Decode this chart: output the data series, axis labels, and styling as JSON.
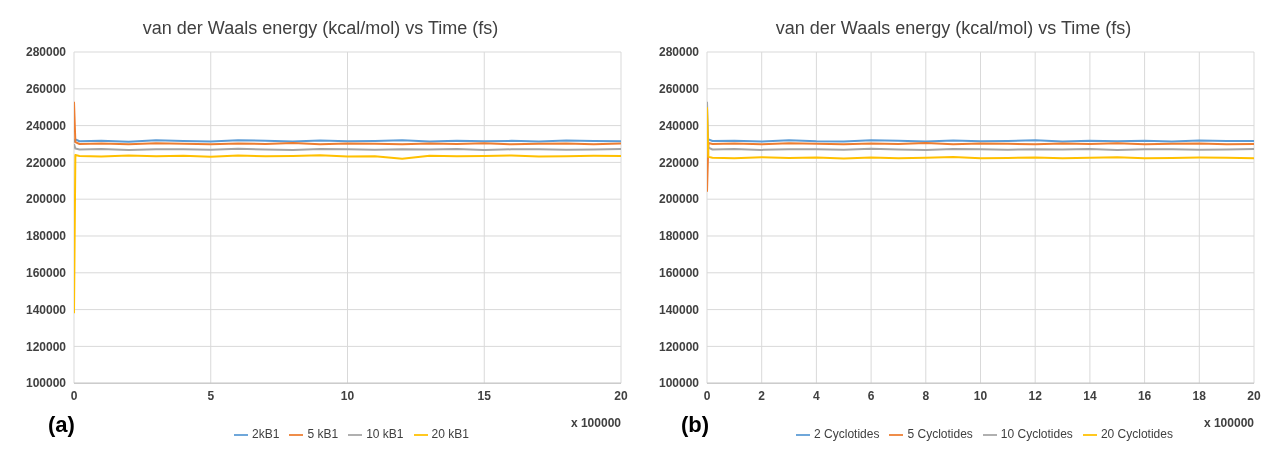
{
  "chart_data": [
    {
      "type": "line",
      "title": "van der Waals energy (kcal/mol) vs Time (fs)",
      "xlabel": "x 100000",
      "annotations": [
        "(a)"
      ],
      "x": [
        0,
        0.05,
        0.2,
        1,
        2,
        3,
        4,
        5,
        6,
        7,
        8,
        9,
        10,
        11,
        12,
        13,
        14,
        15,
        16,
        17,
        18,
        19,
        20
      ],
      "series": [
        {
          "name": "2kB1",
          "color": "#5b9bd5",
          "values": [
            231000,
            232500,
            231500,
            231800,
            231200,
            232000,
            231600,
            231400,
            232100,
            231700,
            231300,
            231900,
            231500,
            231600,
            232000,
            231400,
            231800,
            231500,
            231700,
            231300,
            231900,
            231600,
            231500
          ]
        },
        {
          "name": "5 kB1",
          "color": "#ed7d31",
          "values": [
            253000,
            231000,
            230000,
            230300,
            229800,
            230400,
            230100,
            229900,
            230200,
            230000,
            230500,
            229800,
            230300,
            230100,
            229900,
            230200,
            230000,
            230400,
            229800,
            230100,
            230300,
            229900,
            230200
          ]
        },
        {
          "name": "10 kB1",
          "color": "#a5a5a5",
          "values": [
            230000,
            227500,
            227000,
            227300,
            226800,
            227200,
            227100,
            226900,
            227400,
            227000,
            226800,
            227300,
            227100,
            226900,
            227200,
            227000,
            227300,
            226800,
            227100,
            227200,
            226900,
            227000,
            227300
          ]
        },
        {
          "name": "20 kB1",
          "color": "#ffc000",
          "values": [
            138000,
            224000,
            223500,
            223200,
            223800,
            223400,
            223600,
            223100,
            223700,
            223300,
            223500,
            223900,
            223200,
            223400,
            222000,
            223600,
            223300,
            223500,
            223800,
            223200,
            223400,
            223600,
            223500
          ]
        }
      ],
      "xlim": [
        0,
        20
      ],
      "xticks": [
        0,
        5,
        10,
        15,
        20
      ],
      "ylim": [
        100000,
        280000
      ],
      "yticks": [
        100000,
        120000,
        140000,
        160000,
        180000,
        200000,
        220000,
        240000,
        260000,
        280000
      ],
      "grid": true,
      "legend": "bottom",
      "marker": "none",
      "line_style": "solid"
    },
    {
      "type": "line",
      "title": "van der Waals energy (kcal/mol) vs Time (fs)",
      "xlabel": "x 100000",
      "annotations": [
        "(b)"
      ],
      "x": [
        0,
        0.05,
        0.2,
        1,
        2,
        3,
        4,
        5,
        6,
        7,
        8,
        9,
        10,
        11,
        12,
        13,
        14,
        15,
        16,
        17,
        18,
        19,
        20
      ],
      "series": [
        {
          "name": "2 Cyclotides",
          "color": "#5b9bd5",
          "values": [
            232000,
            232500,
            231600,
            231800,
            231300,
            232000,
            231500,
            231400,
            232000,
            231700,
            231300,
            231900,
            231500,
            231600,
            232000,
            231400,
            231800,
            231500,
            231700,
            231300,
            231900,
            231600,
            231600
          ]
        },
        {
          "name": "5 Cyclotides",
          "color": "#ed7d31",
          "values": [
            204000,
            230500,
            230000,
            230300,
            229800,
            230400,
            230100,
            229900,
            230200,
            230000,
            230500,
            229800,
            230300,
            230100,
            229900,
            230200,
            230000,
            230400,
            229800,
            230100,
            230300,
            229900,
            230000
          ]
        },
        {
          "name": "10 Cyclotides",
          "color": "#a5a5a5",
          "values": [
            253000,
            228000,
            227000,
            227300,
            226800,
            227200,
            227100,
            226900,
            227400,
            227000,
            226800,
            227300,
            227100,
            226900,
            227200,
            227000,
            227300,
            226800,
            227100,
            227200,
            226900,
            227000,
            227300
          ]
        },
        {
          "name": "20 Cyclotides",
          "color": "#ffc000",
          "values": [
            250000,
            223000,
            222500,
            222300,
            222800,
            222400,
            222600,
            222100,
            222700,
            222300,
            222500,
            222900,
            222200,
            222400,
            222600,
            222300,
            222500,
            222800,
            222200,
            222400,
            222600,
            222500,
            222300
          ]
        }
      ],
      "xlim": [
        0,
        20
      ],
      "xticks": [
        0,
        2,
        4,
        6,
        8,
        10,
        12,
        14,
        16,
        18,
        20
      ],
      "ylim": [
        100000,
        280000
      ],
      "yticks": [
        100000,
        120000,
        140000,
        160000,
        180000,
        200000,
        220000,
        240000,
        260000,
        280000
      ],
      "grid": true,
      "legend": "bottom",
      "marker": "none",
      "line_style": "solid"
    }
  ]
}
